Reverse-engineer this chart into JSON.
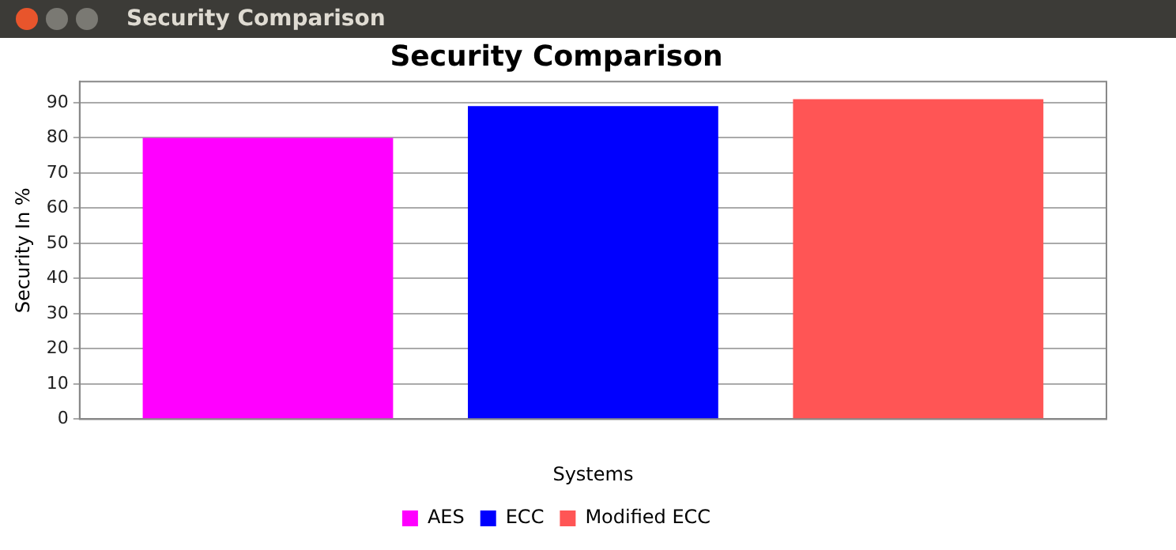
{
  "chart_data": {
    "type": "bar",
    "title": "Security Comparison",
    "xlabel": "Systems",
    "ylabel": "Security In %",
    "annotations": [
      "Security Comparison"
    ],
    "categories": [
      null
    ],
    "series": [
      {
        "name": "AES",
        "color": "#ff00ff",
        "values": [
          80
        ]
      },
      {
        "name": "ECC",
        "color": "#0000ff",
        "values": [
          89
        ]
      },
      {
        "name": "Modified ECC",
        "color": "#ff5555",
        "values": [
          91
        ]
      }
    ],
    "ylim": [
      0,
      96
    ],
    "yticks": [
      0,
      10,
      20,
      30,
      40,
      50,
      60,
      70,
      80,
      90
    ],
    "grid": "y",
    "legend": "bottom"
  }
}
